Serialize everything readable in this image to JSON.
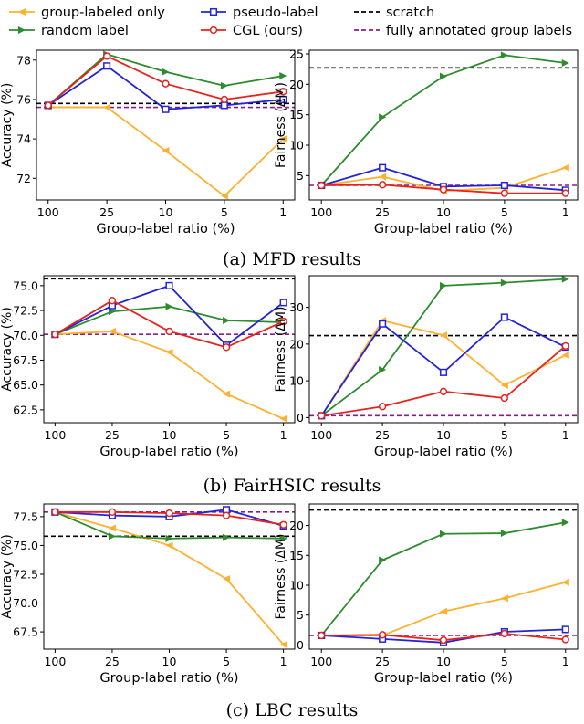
{
  "legend": {
    "entries": [
      {
        "key": "group",
        "label": "group-labeled only"
      },
      {
        "key": "pseudo",
        "label": "pseudo-label"
      },
      {
        "key": "scratch",
        "label": "scratch"
      },
      {
        "key": "random",
        "label": "random label"
      },
      {
        "key": "cgl",
        "label": "CGL (ours)"
      },
      {
        "key": "full",
        "label": "fully annotated group labels"
      }
    ]
  },
  "styles": {
    "group": {
      "color": "#ffb02e",
      "marker": "triangle-left"
    },
    "random": {
      "color": "#2e8b2e",
      "marker": "triangle-right"
    },
    "pseudo": {
      "color": "#2424d6",
      "marker": "square"
    },
    "cgl": {
      "color": "#e8231e",
      "marker": "circle"
    },
    "scratch": {
      "color": "#000000",
      "dash": "dashed"
    },
    "full": {
      "color": "#8b1a8b",
      "dash": "dashed"
    }
  },
  "captions": [
    "(a) MFD results",
    "(b) FairHSIC results",
    "(c) LBC results"
  ],
  "chart_data": [
    {
      "type": "line",
      "panel": "a-accuracy",
      "categories": [
        "100",
        "25",
        "10",
        "5",
        "1"
      ],
      "xlabel": "Group-label ratio (%)",
      "ylabel": "Accuracy (%)",
      "ylim": [
        70.9,
        78.5
      ],
      "yticks": [
        72,
        74,
        76,
        78
      ],
      "tick_decimals": 0,
      "series": [
        {
          "key": "group",
          "values": [
            75.6,
            75.6,
            73.4,
            71.1,
            74.0
          ]
        },
        {
          "key": "random",
          "values": [
            75.7,
            78.3,
            77.4,
            76.7,
            77.2
          ]
        },
        {
          "key": "pseudo",
          "values": [
            75.7,
            77.7,
            75.5,
            75.7,
            76.0
          ]
        },
        {
          "key": "cgl",
          "values": [
            75.7,
            78.2,
            76.8,
            76.0,
            76.4
          ]
        }
      ],
      "reference_lines": [
        {
          "key": "scratch",
          "value": 75.8
        },
        {
          "key": "full",
          "value": 75.6
        }
      ]
    },
    {
      "type": "line",
      "panel": "a-fairness",
      "categories": [
        "100",
        "25",
        "10",
        "5",
        "1"
      ],
      "xlabel": "Group-label ratio (%)",
      "ylabel": "Fairness (ΔM)",
      "ylim": [
        1.0,
        25.6
      ],
      "yticks": [
        5,
        10,
        15,
        20,
        25
      ],
      "tick_decimals": 0,
      "series": [
        {
          "key": "group",
          "values": [
            3.4,
            4.8,
            2.5,
            3.0,
            6.3
          ]
        },
        {
          "key": "random",
          "values": [
            3.4,
            14.6,
            21.3,
            24.8,
            23.5
          ]
        },
        {
          "key": "pseudo",
          "values": [
            3.4,
            6.3,
            3.2,
            3.4,
            2.6
          ]
        },
        {
          "key": "cgl",
          "values": [
            3.4,
            3.5,
            2.7,
            2.1,
            2.1
          ]
        }
      ],
      "reference_lines": [
        {
          "key": "scratch",
          "value": 22.7
        },
        {
          "key": "full",
          "value": 3.4
        }
      ]
    },
    {
      "type": "line",
      "panel": "b-accuracy",
      "categories": [
        "100",
        "25",
        "10",
        "5",
        "1"
      ],
      "xlabel": "Group-label ratio (%)",
      "ylabel": "Accuracy (%)",
      "ylim": [
        61.2,
        76.0
      ],
      "yticks": [
        62.5,
        65.0,
        67.5,
        70.0,
        72.5,
        75.0
      ],
      "tick_decimals": 1,
      "series": [
        {
          "key": "group",
          "values": [
            70.1,
            70.4,
            68.3,
            64.1,
            61.6
          ]
        },
        {
          "key": "random",
          "values": [
            70.1,
            72.4,
            72.9,
            71.5,
            71.3
          ]
        },
        {
          "key": "pseudo",
          "values": [
            70.1,
            73.0,
            75.0,
            69.0,
            73.3
          ]
        },
        {
          "key": "cgl",
          "values": [
            70.1,
            73.5,
            70.4,
            68.8,
            71.4
          ]
        }
      ],
      "reference_lines": [
        {
          "key": "scratch",
          "value": 75.7
        },
        {
          "key": "full",
          "value": 70.1
        }
      ]
    },
    {
      "type": "line",
      "panel": "b-fairness",
      "categories": [
        "100",
        "25",
        "10",
        "5",
        "1"
      ],
      "xlabel": "Group-label ratio (%)",
      "ylabel": "Fairness (ΔM)",
      "ylim": [
        -1.4,
        38.6
      ],
      "yticks": [
        0,
        10,
        20,
        30
      ],
      "tick_decimals": 0,
      "series": [
        {
          "key": "group",
          "values": [
            0.5,
            26.4,
            22.4,
            8.8,
            17.0
          ]
        },
        {
          "key": "random",
          "values": [
            0.5,
            13.0,
            35.9,
            36.7,
            37.7
          ]
        },
        {
          "key": "pseudo",
          "values": [
            0.5,
            25.5,
            12.3,
            27.3,
            19.2
          ]
        },
        {
          "key": "cgl",
          "values": [
            0.5,
            3.0,
            7.1,
            5.3,
            19.5
          ]
        }
      ],
      "reference_lines": [
        {
          "key": "scratch",
          "value": 22.3
        },
        {
          "key": "full",
          "value": 0.5
        }
      ]
    },
    {
      "type": "line",
      "panel": "c-accuracy",
      "categories": [
        "100",
        "25",
        "10",
        "5",
        "1"
      ],
      "xlabel": "Group-label ratio (%)",
      "ylabel": "Accuracy (%)",
      "ylim": [
        66.0,
        78.6
      ],
      "yticks": [
        67.5,
        70.0,
        72.5,
        75.0,
        77.5
      ],
      "tick_decimals": 1,
      "series": [
        {
          "key": "group",
          "values": [
            77.9,
            76.5,
            75.0,
            72.1,
            66.4
          ]
        },
        {
          "key": "random",
          "values": [
            77.9,
            75.8,
            75.6,
            75.7,
            75.6
          ]
        },
        {
          "key": "pseudo",
          "values": [
            77.9,
            77.6,
            77.5,
            78.1,
            76.7
          ]
        },
        {
          "key": "cgl",
          "values": [
            77.9,
            77.9,
            77.8,
            77.6,
            76.8
          ]
        }
      ],
      "reference_lines": [
        {
          "key": "scratch",
          "value": 75.8
        },
        {
          "key": "full",
          "value": 77.9
        }
      ]
    },
    {
      "type": "line",
      "panel": "c-fairness",
      "categories": [
        "100",
        "25",
        "10",
        "5",
        "1"
      ],
      "xlabel": "Group-label ratio (%)",
      "ylabel": "Fairness (ΔM)",
      "ylim": [
        -0.7,
        23.6
      ],
      "yticks": [
        0,
        5,
        10,
        15,
        20
      ],
      "tick_decimals": 0,
      "series": [
        {
          "key": "group",
          "values": [
            1.6,
            1.6,
            5.6,
            7.8,
            10.5
          ]
        },
        {
          "key": "random",
          "values": [
            1.6,
            14.2,
            18.6,
            18.7,
            20.5
          ]
        },
        {
          "key": "pseudo",
          "values": [
            1.6,
            1.0,
            0.4,
            2.2,
            2.6
          ]
        },
        {
          "key": "cgl",
          "values": [
            1.6,
            1.7,
            0.8,
            1.9,
            0.9
          ]
        }
      ],
      "reference_lines": [
        {
          "key": "scratch",
          "value": 22.6
        },
        {
          "key": "full",
          "value": 1.6
        }
      ]
    }
  ]
}
